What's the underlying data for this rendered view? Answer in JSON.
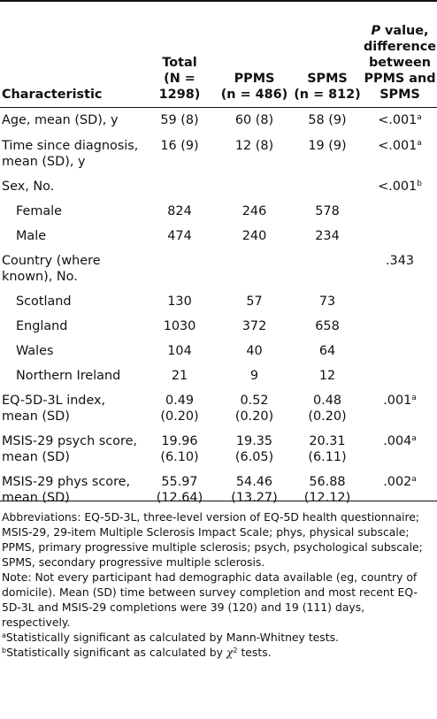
{
  "header": {
    "characteristic": "Characteristic",
    "total_line1": "Total",
    "total_line2": "(N = 1298)",
    "ppms_line1": "PPMS",
    "ppms_line2": "(n = 486)",
    "spms_line1": "SPMS",
    "spms_line2": "(n = 812)",
    "p_line1_italic": "P",
    "p_line1_rest": " value,",
    "p_line2": "difference",
    "p_line3": "between",
    "p_line4": "PPMS and",
    "p_line5": "SPMS"
  },
  "rows": [
    {
      "label": [
        "Age, mean (SD), y"
      ],
      "total": [
        "59 (8)"
      ],
      "ppms": [
        "60 (8)"
      ],
      "spms": [
        "58 (9)"
      ],
      "p": "<.001",
      "sup": "a"
    },
    {
      "label": [
        "Time since diagnosis,",
        "mean (SD), y"
      ],
      "total": [
        "16 (9)"
      ],
      "ppms": [
        "12 (8)"
      ],
      "spms": [
        "19 (9)"
      ],
      "p": "<.001",
      "sup": "a"
    },
    {
      "label": [
        "Sex, No."
      ],
      "total": [
        ""
      ],
      "ppms": [
        ""
      ],
      "spms": [
        ""
      ],
      "p": "<.001",
      "sup": "b"
    },
    {
      "label": [
        "Female"
      ],
      "indent": true,
      "total": [
        "824"
      ],
      "ppms": [
        "246"
      ],
      "spms": [
        "578"
      ],
      "p": "",
      "sup": ""
    },
    {
      "label": [
        "Male"
      ],
      "indent": true,
      "total": [
        "474"
      ],
      "ppms": [
        "240"
      ],
      "spms": [
        "234"
      ],
      "p": "",
      "sup": ""
    },
    {
      "label": [
        "Country (where",
        "known), No."
      ],
      "total": [
        ""
      ],
      "ppms": [
        ""
      ],
      "spms": [
        ""
      ],
      "p": ".343",
      "sup": ""
    },
    {
      "label": [
        "Scotland"
      ],
      "indent": true,
      "total": [
        "130"
      ],
      "ppms": [
        "57"
      ],
      "spms": [
        "73"
      ],
      "p": "",
      "sup": ""
    },
    {
      "label": [
        "England"
      ],
      "indent": true,
      "total": [
        "1030"
      ],
      "ppms": [
        "372"
      ],
      "spms": [
        "658"
      ],
      "p": "",
      "sup": ""
    },
    {
      "label": [
        "Wales"
      ],
      "indent": true,
      "total": [
        "104"
      ],
      "ppms": [
        "40"
      ],
      "spms": [
        "64"
      ],
      "p": "",
      "sup": ""
    },
    {
      "label": [
        "Northern Ireland"
      ],
      "indent": true,
      "total": [
        "21"
      ],
      "ppms": [
        "9"
      ],
      "spms": [
        "12"
      ],
      "p": "",
      "sup": ""
    },
    {
      "label": [
        "EQ-5D-3L index,",
        "mean (SD)"
      ],
      "total": [
        "0.49",
        "(0.20)"
      ],
      "ppms": [
        "0.52",
        "(0.20)"
      ],
      "spms": [
        "0.48",
        "(0.20)"
      ],
      "p": ".001",
      "sup": "a"
    },
    {
      "label": [
        "MSIS-29 psych score,",
        "mean (SD)"
      ],
      "total": [
        "19.96",
        "(6.10)"
      ],
      "ppms": [
        "19.35",
        "(6.05)"
      ],
      "spms": [
        "20.31",
        "(6.11)"
      ],
      "p": ".004",
      "sup": "a"
    },
    {
      "label": [
        "MSIS-29 phys score,",
        "mean (SD)"
      ],
      "total": [
        "55.97",
        "(12.64)"
      ],
      "ppms": [
        "54.46",
        "(13.27)"
      ],
      "spms": [
        "56.88",
        "(12.12)"
      ],
      "p": ".002",
      "sup": "a"
    }
  ],
  "notes": {
    "abbreviations": "Abbreviations: EQ-5D-3L, three-level version of EQ-5D health questionnaire; MSIS-29, 29-item Multiple Sclerosis Impact Scale; phys, physical subscale; PPMS, primary progressive multiple sclerosis; psych, psychological subscale; SPMS, secondary progressive multiple sclerosis.",
    "note": "Note: Not every participant had demographic data available (eg, country of domicile). Mean (SD) time between survey completion and most recent EQ-5D-3L and MSIS-29 completions were 39 (120) and 19 (111) days, respectively.",
    "footnote_a_mark": "a",
    "footnote_a": "Statistically significant as calculated by Mann-Whitney tests.",
    "footnote_b_mark": "b",
    "footnote_b_pre": "Statistically significant as calculated by ",
    "footnote_b_symbol": "χ",
    "footnote_b_sup": "2",
    "footnote_b_post": " tests."
  }
}
